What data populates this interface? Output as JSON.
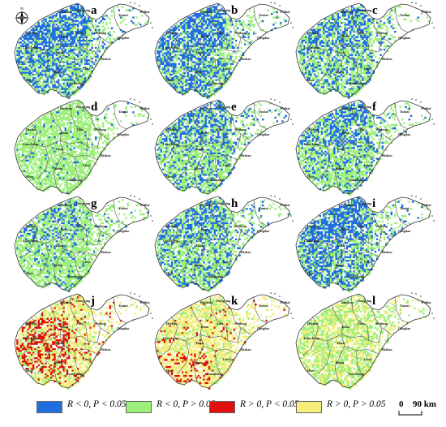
{
  "panels": [
    {
      "label": "a",
      "pattern": "blue"
    },
    {
      "label": "b",
      "pattern": "blue"
    },
    {
      "label": "c",
      "pattern": "bluegreen"
    },
    {
      "label": "d",
      "pattern": "green"
    },
    {
      "label": "e",
      "pattern": "bluegreen"
    },
    {
      "label": "f",
      "pattern": "bluegreen"
    },
    {
      "label": "g",
      "pattern": "greenblue"
    },
    {
      "label": "h",
      "pattern": "bluegreen"
    },
    {
      "label": "i",
      "pattern": "blue"
    },
    {
      "label": "j",
      "pattern": "red"
    },
    {
      "label": "k",
      "pattern": "yellow"
    },
    {
      "label": "l",
      "pattern": "yellowgreen"
    }
  ],
  "city_labels": [
    "Dezhou",
    "Binzhou",
    "Dongying",
    "Yantai",
    "Weihai",
    "Qingdao",
    "Weifang",
    "Zibo",
    "Jinan",
    "Liaocheng",
    "Taian",
    "Heze",
    "Jining",
    "Linyi",
    "Rizhao",
    "Zaozhuang"
  ],
  "north_arrow": {
    "letter": "N"
  },
  "legend": [
    {
      "id": "neg-sig",
      "text": "R < 0,  P < 0.05",
      "color": "#1f6fe0"
    },
    {
      "id": "neg-nonsig",
      "text": "R < 0,  P > 0.05",
      "color": "#9cef7a"
    },
    {
      "id": "pos-sig",
      "text": "R > 0,  P < 0.05",
      "color": "#e0100c"
    },
    {
      "id": "pos-nonsig",
      "text": "R > 0,  P > 0.05",
      "color": "#f5ee7c"
    }
  ],
  "scale_bar": {
    "zero": "0",
    "value": "90 km"
  },
  "colors": {
    "blue": "#1f6fe0",
    "green": "#9cef7a",
    "red": "#e0100c",
    "yellow": "#f5ee7c",
    "outline": "#333333"
  }
}
